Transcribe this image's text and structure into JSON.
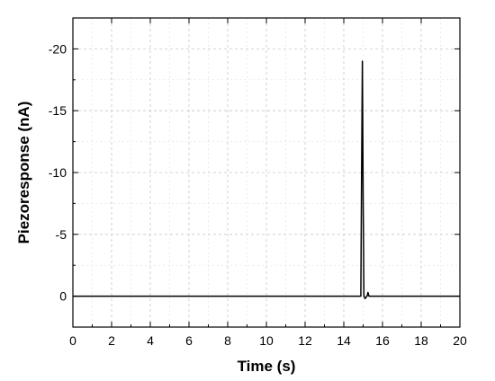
{
  "chart_data": {
    "type": "line",
    "xlabel": "Time (s)",
    "ylabel": "Piezoresponse (nA)",
    "xlim": [
      0,
      20
    ],
    "ylim": [
      2.5,
      -22.5
    ],
    "y_axis_inverted": true,
    "grid": true,
    "x_ticks": [
      0,
      2,
      4,
      6,
      8,
      10,
      12,
      14,
      16,
      18,
      20
    ],
    "x_tick_labels": [
      "0",
      "2",
      "4",
      "6",
      "8",
      "10",
      "12",
      "14",
      "16",
      "18",
      "20"
    ],
    "y_ticks": [
      0,
      -5,
      -10,
      -15,
      -20
    ],
    "y_tick_labels": [
      "0",
      "-5",
      "-10",
      "-15",
      "-20"
    ],
    "series": [
      {
        "color": "#000000",
        "x": [
          0,
          14.88,
          14.92,
          14.96,
          15.0,
          15.04,
          15.1,
          15.2,
          15.25,
          15.3,
          15.4,
          20
        ],
        "y": [
          0,
          0,
          -10,
          -19,
          -8,
          0,
          0.2,
          0,
          -0.3,
          0,
          0,
          0
        ]
      }
    ]
  }
}
